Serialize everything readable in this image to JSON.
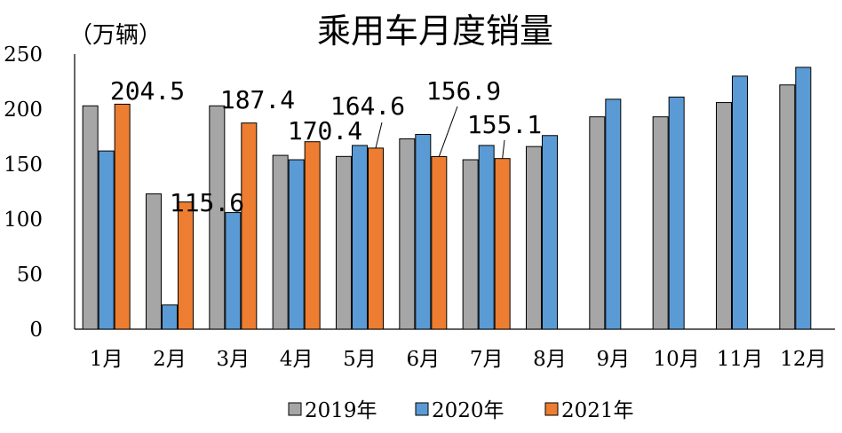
{
  "chart_data": {
    "type": "bar",
    "title": "乘用车月度销量",
    "unit_label": "（万辆）",
    "categories": [
      "1月",
      "2月",
      "3月",
      "4月",
      "5月",
      "6月",
      "7月",
      "8月",
      "9月",
      "10月",
      "11月",
      "12月"
    ],
    "ylim": [
      0,
      250
    ],
    "yticks": [
      "0",
      "50",
      "100",
      "150",
      "200",
      "250"
    ],
    "grid": false,
    "legend_position": "bottom",
    "series": [
      {
        "name": "2019年",
        "color": "#a6a6a6",
        "values": [
          203,
          123,
          203,
          158,
          157,
          173,
          154,
          166,
          193,
          193,
          206,
          222
        ]
      },
      {
        "name": "2020年",
        "color": "#5b9bd5",
        "values": [
          162,
          22,
          106,
          154,
          167,
          177,
          167,
          176,
          209,
          211,
          230,
          238
        ]
      },
      {
        "name": "2021年",
        "color": "#ed7d31",
        "values": [
          204.5,
          115.6,
          187.4,
          170.4,
          164.6,
          156.9,
          155.1,
          null,
          null,
          null,
          null,
          null
        ]
      }
    ],
    "data_labels": [
      "204.5",
      "115.6",
      "187.4",
      "170.4",
      "164.6",
      "156.9",
      "155.1"
    ]
  }
}
